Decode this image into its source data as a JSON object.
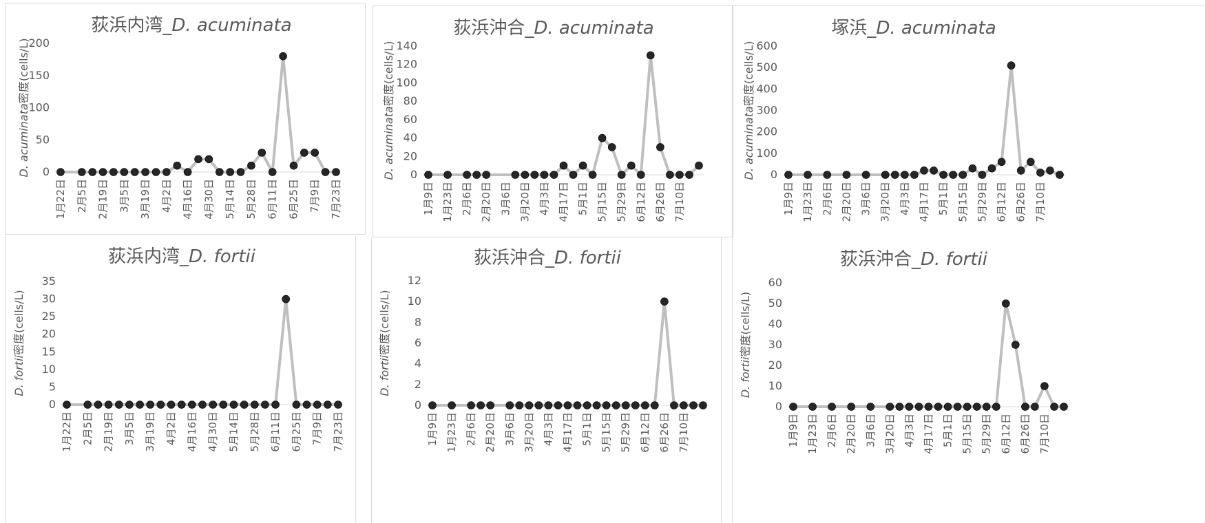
{
  "chart_data": [
    {
      "type": "line",
      "title": "荻浜内湾_D. acuminata",
      "title_prefix": "荻浜内湾_",
      "title_species": "D. acuminata",
      "ylabel": "D. acuminata密度(cells/L)",
      "ylabel_species": "D. acuminata",
      "ylabel_unit": "密度(cells/L)",
      "ylim": [
        0,
        200
      ],
      "yticks": [
        0,
        50,
        100,
        150,
        200
      ],
      "xtick_labels": [
        "1月22日",
        "2月5日",
        "2月19日",
        "3月5日",
        "3月19日",
        "4月2日",
        "4月16日",
        "4月30日",
        "5月14日",
        "5月28日",
        "6月11日",
        "6月25日",
        "7月9日",
        "7月23日"
      ],
      "x": [
        0,
        2,
        3,
        4,
        5,
        6,
        7,
        8,
        9,
        10,
        11,
        12,
        13,
        14,
        15,
        16,
        17,
        18,
        19,
        20,
        21,
        22,
        23,
        24,
        25,
        26
      ],
      "values": [
        0,
        0,
        0,
        0,
        0,
        0,
        0,
        0,
        0,
        0,
        10,
        0,
        20,
        20,
        0,
        0,
        0,
        10,
        30,
        0,
        180,
        10,
        30,
        30,
        0,
        0
      ],
      "grid": false
    },
    {
      "type": "line",
      "title": "荻浜沖合_D. acuminata",
      "title_prefix": "荻浜沖合_",
      "title_species": "D. acuminata",
      "ylabel": "D. acuminata密度(cells/L)",
      "ylabel_species": "D. acuminata",
      "ylabel_unit": "密度(cells/L)",
      "ylim": [
        0,
        140
      ],
      "yticks": [
        0,
        20,
        40,
        60,
        80,
        100,
        120,
        140
      ],
      "xtick_labels": [
        "1月9日",
        "1月23日",
        "2月6日",
        "2月20日",
        "3月6日",
        "3月20日",
        "4月3日",
        "4月17日",
        "5月1日",
        "5月15日",
        "5月29日",
        "6月12日",
        "6月26日",
        "7月10日"
      ],
      "x": [
        0,
        2,
        4,
        5,
        6,
        9,
        10,
        11,
        12,
        13,
        14,
        15,
        16,
        17,
        18,
        19,
        20,
        21,
        22,
        23,
        24,
        25,
        26,
        27,
        28
      ],
      "values": [
        0,
        0,
        0,
        0,
        0,
        0,
        0,
        0,
        0,
        0,
        10,
        0,
        10,
        0,
        40,
        30,
        0,
        10,
        0,
        130,
        30,
        0,
        0,
        0,
        10
      ],
      "grid": false
    },
    {
      "type": "line",
      "title": "塚浜_D. acuminata",
      "title_prefix": "塚浜_",
      "title_species": "D. acuminata",
      "ylabel": "D. acuminata密度(cells/L)",
      "ylabel_species": "D. acuminata",
      "ylabel_unit": "密度(cells/L)",
      "ylim": [
        0,
        600
      ],
      "yticks": [
        0,
        100,
        200,
        300,
        400,
        500,
        600
      ],
      "xtick_labels": [
        "1月9日",
        "1月23日",
        "2月6日",
        "2月20日",
        "3月6日",
        "3月20日",
        "4月3日",
        "4月17日",
        "5月1日",
        "5月15日",
        "5月29日",
        "6月12日",
        "6月26日",
        "7月10日"
      ],
      "x": [
        0,
        2,
        4,
        6,
        8,
        10,
        11,
        12,
        13,
        14,
        15,
        16,
        17,
        18,
        19,
        20,
        21,
        22,
        23,
        24,
        25,
        26,
        27,
        28
      ],
      "values": [
        0,
        0,
        0,
        0,
        0,
        0,
        0,
        0,
        0,
        20,
        20,
        0,
        0,
        0,
        30,
        0,
        30,
        60,
        510,
        20,
        60,
        10,
        20,
        0
      ],
      "grid": false
    },
    {
      "type": "line",
      "title": "荻浜内湾_D. fortii",
      "title_prefix": "荻浜内湾_",
      "title_species": "D. fortii",
      "ylabel": "D. fortii密度(cells/L)",
      "ylabel_species": "D. fortii",
      "ylabel_unit": "密度(cells/L)",
      "ylim": [
        0,
        35
      ],
      "yticks": [
        0,
        5,
        10,
        15,
        20,
        25,
        30,
        35
      ],
      "xtick_labels": [
        "1月22日",
        "2月5日",
        "2月19日",
        "3月5日",
        "3月19日",
        "4月2日",
        "4月16日",
        "4月30日",
        "5月14日",
        "5月28日",
        "6月11日",
        "6月25日",
        "7月9日",
        "7月23日"
      ],
      "x": [
        0,
        2,
        3,
        4,
        5,
        6,
        7,
        8,
        9,
        10,
        11,
        12,
        13,
        14,
        15,
        16,
        17,
        18,
        19,
        20,
        21,
        22,
        23,
        24,
        25,
        26
      ],
      "values": [
        0,
        0,
        0,
        0,
        0,
        0,
        0,
        0,
        0,
        0,
        0,
        0,
        0,
        0,
        0,
        0,
        0,
        0,
        0,
        0,
        30,
        0,
        0,
        0,
        0,
        0
      ],
      "grid": false
    },
    {
      "type": "line",
      "title": "荻浜沖合_D. fortii",
      "title_prefix": "荻浜沖合_",
      "title_species": "D. fortii",
      "ylabel": "D. fortii密度(cells/L)",
      "ylabel_species": "D. fortii",
      "ylabel_unit": "密度(cells/L)",
      "ylim": [
        0,
        12
      ],
      "yticks": [
        0,
        2,
        4,
        6,
        8,
        10,
        12
      ],
      "xtick_labels": [
        "1月9日",
        "1月23日",
        "2月6日",
        "2月20日",
        "3月6日",
        "3月20日",
        "4月3日",
        "4月17日",
        "5月1日",
        "5月15日",
        "5月29日",
        "6月12日",
        "6月26日",
        "7月10日"
      ],
      "x": [
        0,
        2,
        4,
        5,
        6,
        8,
        9,
        10,
        11,
        12,
        13,
        14,
        15,
        16,
        17,
        18,
        19,
        20,
        21,
        22,
        23,
        24,
        25,
        26,
        27,
        28
      ],
      "values": [
        0,
        0,
        0,
        0,
        0,
        0,
        0,
        0,
        0,
        0,
        0,
        0,
        0,
        0,
        0,
        0,
        0,
        0,
        0,
        0,
        0,
        10,
        0,
        0,
        0,
        0
      ],
      "grid": false
    },
    {
      "type": "line",
      "title": "荻浜沖合_D. fortii",
      "title_prefix": "荻浜沖合_",
      "title_species": "D. fortii",
      "ylabel": "D. fortii密度(cells/L)",
      "ylabel_species": "D. fortii",
      "ylabel_unit": "密度(cells/L)",
      "ylim": [
        0,
        60
      ],
      "yticks": [
        0,
        10,
        20,
        30,
        40,
        50,
        60
      ],
      "xtick_labels": [
        "1月9日",
        "1月23日",
        "2月6日",
        "2月20日",
        "3月6日",
        "3月20日",
        "4月3日",
        "4月17日",
        "5月1日",
        "5月15日",
        "5月29日",
        "6月12日",
        "6月26日",
        "7月10日"
      ],
      "x": [
        0,
        2,
        4,
        6,
        8,
        10,
        11,
        12,
        13,
        14,
        15,
        16,
        17,
        18,
        19,
        20,
        21,
        22,
        23,
        24,
        25,
        26,
        27,
        28
      ],
      "values": [
        0,
        0,
        0,
        0,
        0,
        0,
        0,
        0,
        0,
        0,
        0,
        0,
        0,
        0,
        0,
        0,
        0,
        50,
        30,
        0,
        0,
        10,
        0,
        0
      ],
      "grid": false
    }
  ],
  "style": {
    "line_color": "#bfbfbf",
    "marker_color": "#262626",
    "text_color": "#595959",
    "axis_color": "#d9d9d9",
    "border_color": "#d9d9d9"
  }
}
